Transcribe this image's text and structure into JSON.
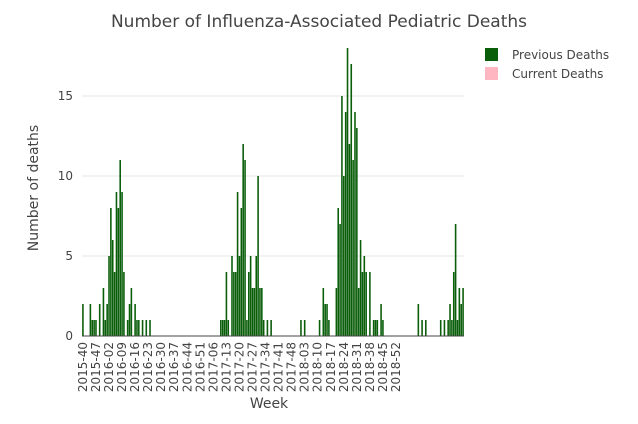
{
  "chart_data": {
    "type": "bar",
    "title": "Number of Influenza-Associated Pediatric Deaths",
    "xlabel": "Week",
    "ylabel": "Number of deaths",
    "ylim": [
      0,
      18.5
    ],
    "yticks": [
      0,
      5,
      10,
      15
    ],
    "grid": true,
    "legend_position": "top-right",
    "xticks": [
      "2015-40",
      "2015-47",
      "2016-02",
      "2016-09",
      "2016-16",
      "2016-23",
      "2016-30",
      "2016-37",
      "2016-44",
      "2016-51",
      "2017-06",
      "2017-13",
      "2017-20",
      "2017-27",
      "2017-34",
      "2017-41",
      "2017-48",
      "2018-03",
      "2018-10",
      "2018-17",
      "2018-24",
      "2018-31",
      "2018-38",
      "2018-45",
      "2018-52"
    ],
    "series": [
      {
        "name": "Previous Deaths",
        "color": "#0a5e0a",
        "values": [
          2,
          0,
          0,
          0,
          2,
          1,
          1,
          1,
          0,
          2,
          0,
          3,
          1,
          2,
          5,
          8,
          6,
          4,
          9,
          8,
          11,
          9,
          4,
          0,
          1,
          2,
          3,
          0,
          2,
          1,
          1,
          0,
          1,
          0,
          1,
          0,
          1,
          0,
          0,
          0,
          0,
          0,
          0,
          0,
          0,
          0,
          0,
          0,
          0,
          0,
          0,
          0,
          0,
          0,
          0,
          0,
          0,
          0,
          0,
          0,
          0,
          0,
          0,
          0,
          0,
          0,
          0,
          0,
          0,
          0,
          0,
          0,
          0,
          0,
          1,
          1,
          1,
          4,
          1,
          0,
          5,
          4,
          4,
          9,
          5,
          8,
          12,
          11,
          1,
          4,
          5,
          3,
          3,
          5,
          10,
          3,
          3,
          1,
          0,
          1,
          0,
          1,
          0,
          0,
          0,
          0,
          0,
          0,
          0,
          0,
          0,
          0,
          0,
          0,
          0,
          0,
          0,
          1,
          0,
          1,
          0,
          0,
          0,
          0,
          0,
          0,
          0,
          1,
          0,
          3,
          2,
          2,
          1,
          0,
          0,
          0,
          3,
          8,
          7,
          15,
          10,
          14,
          18,
          12,
          17,
          11,
          14,
          13,
          3,
          6,
          4,
          5,
          4,
          0,
          4,
          0,
          1,
          1,
          1,
          0,
          2,
          1,
          0,
          0,
          0,
          0,
          0,
          0,
          0,
          0,
          0,
          0,
          0,
          0,
          0,
          0,
          0,
          0,
          0,
          0,
          2,
          0,
          1,
          0,
          1,
          0,
          0,
          0,
          0,
          0,
          0,
          0,
          1,
          0,
          1,
          0,
          1,
          2,
          1,
          4,
          7,
          1,
          3,
          2,
          3
        ]
      },
      {
        "name": "Current Deaths",
        "color": "#ffb6c1",
        "values": []
      }
    ]
  }
}
